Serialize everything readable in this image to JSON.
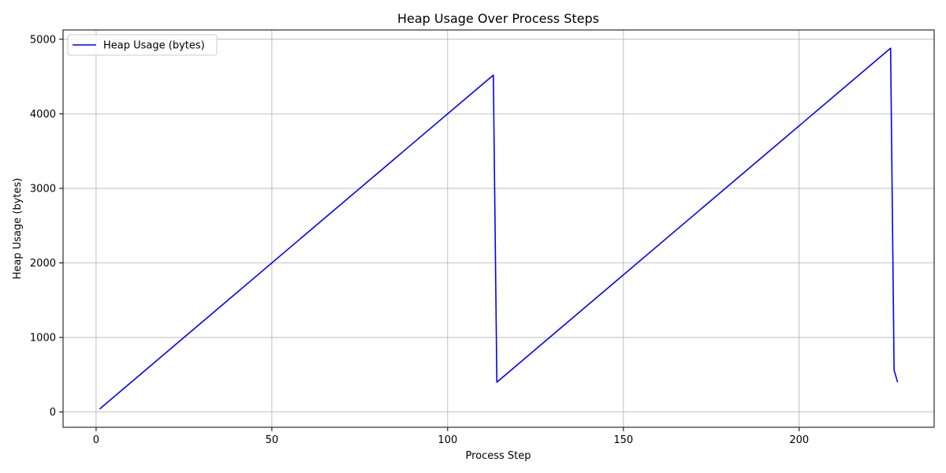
{
  "chart_data": {
    "type": "line",
    "title": "Heap Usage Over Process Steps",
    "xlabel": "Process Step",
    "ylabel": "Heap Usage (bytes)",
    "xlim": [
      -9.4,
      238.4
    ],
    "ylim": [
      -205,
      5125
    ],
    "xticks": [
      0,
      50,
      100,
      150,
      200
    ],
    "yticks": [
      0,
      1000,
      2000,
      3000,
      4000,
      5000
    ],
    "grid": true,
    "legend_position": "top-left",
    "series": [
      {
        "name": "Heap Usage (bytes)",
        "color": "#0000ff",
        "x": [
          1,
          113,
          114,
          226,
          227,
          228
        ],
        "y": [
          40,
          4520,
          400,
          4880,
          560,
          400
        ]
      }
    ]
  }
}
